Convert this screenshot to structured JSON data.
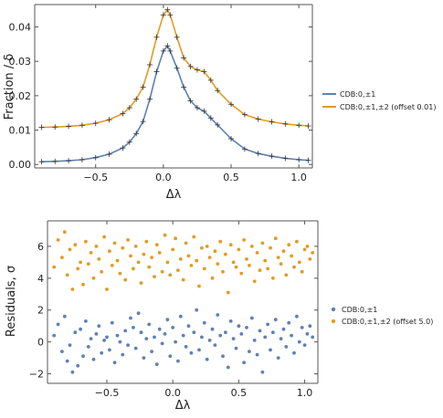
{
  "chart_data": [
    {
      "type": "line",
      "xlabel": "Δλ",
      "ylabel": "Fraction / δ",
      "xlim": [
        -0.95,
        1.1
      ],
      "ylim": [
        -0.001,
        0.0465
      ],
      "xticks": [
        -0.5,
        0.0,
        0.5,
        1.0
      ],
      "xtick_labels": [
        "−0.5",
        "0.0",
        "0.5",
        "1.0"
      ],
      "yticks": [
        0.0,
        0.01,
        0.02,
        0.03,
        0.04
      ],
      "ytick_labels": [
        "0.00",
        "0.01",
        "0.02",
        "0.03",
        "0.04"
      ],
      "legend_position": "right",
      "grid": false,
      "series": [
        {
          "name": "CDB:0,±1",
          "color": "#5e81b5",
          "x": [
            -0.9,
            -0.8,
            -0.7,
            -0.6,
            -0.5,
            -0.4,
            -0.3,
            -0.25,
            -0.2,
            -0.15,
            -0.1,
            -0.05,
            0.0,
            0.03,
            0.05,
            0.1,
            0.15,
            0.2,
            0.25,
            0.3,
            0.35,
            0.4,
            0.5,
            0.6,
            0.7,
            0.8,
            0.9,
            1.0,
            1.07
          ],
          "y": [
            0.0008,
            0.0009,
            0.0011,
            0.0014,
            0.002,
            0.003,
            0.0048,
            0.0065,
            0.009,
            0.0125,
            0.019,
            0.027,
            0.033,
            0.0345,
            0.033,
            0.028,
            0.0225,
            0.0185,
            0.0165,
            0.0155,
            0.0135,
            0.0115,
            0.0075,
            0.0045,
            0.0032,
            0.0024,
            0.0018,
            0.0014,
            0.0012
          ]
        },
        {
          "name": "CDB:0,±1,±2 (offset 0.01)",
          "color": "#e19c24",
          "x": [
            -0.9,
            -0.8,
            -0.7,
            -0.6,
            -0.5,
            -0.4,
            -0.3,
            -0.25,
            -0.2,
            -0.15,
            -0.1,
            -0.05,
            0.0,
            0.03,
            0.05,
            0.1,
            0.15,
            0.2,
            0.25,
            0.3,
            0.35,
            0.4,
            0.5,
            0.6,
            0.7,
            0.8,
            0.9,
            1.0,
            1.07
          ],
          "y": [
            0.0108,
            0.0109,
            0.0111,
            0.0114,
            0.012,
            0.013,
            0.0148,
            0.0165,
            0.019,
            0.0225,
            0.029,
            0.037,
            0.0435,
            0.045,
            0.0435,
            0.037,
            0.031,
            0.0285,
            0.0275,
            0.027,
            0.0245,
            0.0215,
            0.0175,
            0.0145,
            0.0132,
            0.0124,
            0.0118,
            0.0114,
            0.0112
          ]
        }
      ]
    },
    {
      "type": "scatter",
      "xlabel": "Δλ",
      "ylabel": "Residuals, σ",
      "xlim": [
        -0.95,
        1.1
      ],
      "ylim": [
        -2.6,
        7.6
      ],
      "xticks": [
        -0.5,
        0.0,
        0.5,
        1.0
      ],
      "xtick_labels": [
        "−0.5",
        "0.0",
        "0.5",
        "1.0"
      ],
      "yticks": [
        -2,
        0,
        2,
        4,
        6
      ],
      "ytick_labels": [
        "−2",
        "0",
        "2",
        "4",
        "6"
      ],
      "legend_position": "right",
      "grid": false,
      "series": [
        {
          "name": "CDB:0,±1",
          "color": "#5e81b5",
          "x": [
            -0.9,
            -0.87,
            -0.84,
            -0.82,
            -0.8,
            -0.78,
            -0.76,
            -0.74,
            -0.72,
            -0.7,
            -0.68,
            -0.66,
            -0.64,
            -0.62,
            -0.6,
            -0.58,
            -0.56,
            -0.54,
            -0.52,
            -0.5,
            -0.48,
            -0.46,
            -0.44,
            -0.42,
            -0.4,
            -0.38,
            -0.36,
            -0.34,
            -0.32,
            -0.3,
            -0.28,
            -0.26,
            -0.24,
            -0.22,
            -0.2,
            -0.18,
            -0.16,
            -0.14,
            -0.12,
            -0.1,
            -0.08,
            -0.06,
            -0.04,
            -0.02,
            0.0,
            0.02,
            0.04,
            0.06,
            0.08,
            0.1,
            0.12,
            0.14,
            0.16,
            0.18,
            0.2,
            0.22,
            0.24,
            0.26,
            0.28,
            0.3,
            0.32,
            0.34,
            0.36,
            0.38,
            0.4,
            0.42,
            0.44,
            0.46,
            0.48,
            0.5,
            0.52,
            0.54,
            0.56,
            0.58,
            0.6,
            0.62,
            0.64,
            0.66,
            0.68,
            0.7,
            0.72,
            0.74,
            0.76,
            0.78,
            0.8,
            0.82,
            0.84,
            0.86,
            0.88,
            0.9,
            0.92,
            0.94,
            0.96,
            0.98,
            1.0,
            1.02,
            1.04,
            1.06
          ],
          "y": [
            0.4,
            1.1,
            -0.6,
            1.6,
            -1.2,
            -0.2,
            -1.9,
            0.6,
            -1.5,
            0.8,
            -0.9,
            1.3,
            -0.3,
            0.2,
            -1.1,
            0.5,
            1.0,
            -0.7,
            0.1,
            0.3,
            -0.5,
            1.2,
            -1.3,
            0.4,
            0.0,
            -0.8,
            0.7,
            -0.2,
            1.5,
            0.9,
            -0.4,
            1.8,
            0.6,
            -1.0,
            0.2,
            1.1,
            -0.6,
            0.3,
            -1.4,
            0.8,
            -0.1,
            0.5,
            1.4,
            -0.9,
            0.9,
            0.0,
            -1.2,
            1.6,
            0.4,
            -0.3,
            1.0,
            -0.7,
            0.6,
            2.0,
            -0.5,
            0.3,
            1.2,
            -1.1,
            0.1,
            0.8,
            -0.2,
            1.7,
            0.4,
            -0.9,
            0.6,
            -1.6,
            1.3,
            0.2,
            -0.4,
            1.0,
            0.5,
            -1.3,
            0.9,
            -0.6,
            1.5,
            0.1,
            -0.8,
            0.7,
            -1.9,
            0.3,
            1.1,
            -0.5,
            0.6,
            1.4,
            -1.0,
            0.2,
            0.8,
            -0.3,
            1.2,
            0.4,
            -0.7,
            1.6,
            0.0,
            0.9,
            -0.2,
            0.5,
            1.0,
            0.3
          ]
        },
        {
          "name": "CDB:0,±1,±2 (offset 5.0)",
          "color": "#e19c24",
          "x": [
            -0.9,
            -0.87,
            -0.84,
            -0.82,
            -0.8,
            -0.78,
            -0.76,
            -0.74,
            -0.72,
            -0.7,
            -0.68,
            -0.66,
            -0.64,
            -0.62,
            -0.6,
            -0.58,
            -0.56,
            -0.54,
            -0.52,
            -0.5,
            -0.48,
            -0.46,
            -0.44,
            -0.42,
            -0.4,
            -0.38,
            -0.36,
            -0.34,
            -0.32,
            -0.3,
            -0.28,
            -0.26,
            -0.24,
            -0.22,
            -0.2,
            -0.18,
            -0.16,
            -0.14,
            -0.12,
            -0.1,
            -0.08,
            -0.06,
            -0.04,
            -0.02,
            0.0,
            0.02,
            0.04,
            0.06,
            0.08,
            0.1,
            0.12,
            0.14,
            0.16,
            0.18,
            0.2,
            0.22,
            0.24,
            0.26,
            0.28,
            0.3,
            0.32,
            0.34,
            0.36,
            0.38,
            0.4,
            0.42,
            0.44,
            0.46,
            0.48,
            0.5,
            0.52,
            0.54,
            0.56,
            0.58,
            0.6,
            0.62,
            0.64,
            0.66,
            0.68,
            0.7,
            0.72,
            0.74,
            0.76,
            0.78,
            0.8,
            0.82,
            0.84,
            0.86,
            0.88,
            0.9,
            0.92,
            0.94,
            0.96,
            0.98,
            1.0,
            1.02,
            1.04,
            1.06
          ],
          "y": [
            4.7,
            6.4,
            5.3,
            6.9,
            4.2,
            5.8,
            3.3,
            6.1,
            4.6,
            5.0,
            3.6,
            6.3,
            4.9,
            5.6,
            4.0,
            6.0,
            5.2,
            4.4,
            6.6,
            3.3,
            5.7,
            4.8,
            6.2,
            5.1,
            4.3,
            5.9,
            3.9,
            6.4,
            5.4,
            4.6,
            6.0,
            5.0,
            3.7,
            5.5,
            6.3,
            4.7,
            5.3,
            4.1,
            6.1,
            5.6,
            4.4,
            6.7,
            5.0,
            4.2,
            5.8,
            6.5,
            4.5,
            5.2,
            3.9,
            6.2,
            5.4,
            4.8,
            6.6,
            5.1,
            3.5,
            5.9,
            4.6,
            6.0,
            5.3,
            4.0,
            5.7,
            4.9,
            6.3,
            4.4,
            5.5,
            3.1,
            6.1,
            5.0,
            4.7,
            5.8,
            4.3,
            6.4,
            5.2,
            4.8,
            6.0,
            3.8,
            5.6,
            4.5,
            6.2,
            5.1,
            4.6,
            5.9,
            4.0,
            6.5,
            5.3,
            4.9,
            5.7,
            4.2,
            6.1,
            5.4,
            4.7,
            6.3,
            5.0,
            4.4,
            5.8,
            6.0,
            5.2,
            5.6
          ]
        }
      ]
    }
  ]
}
